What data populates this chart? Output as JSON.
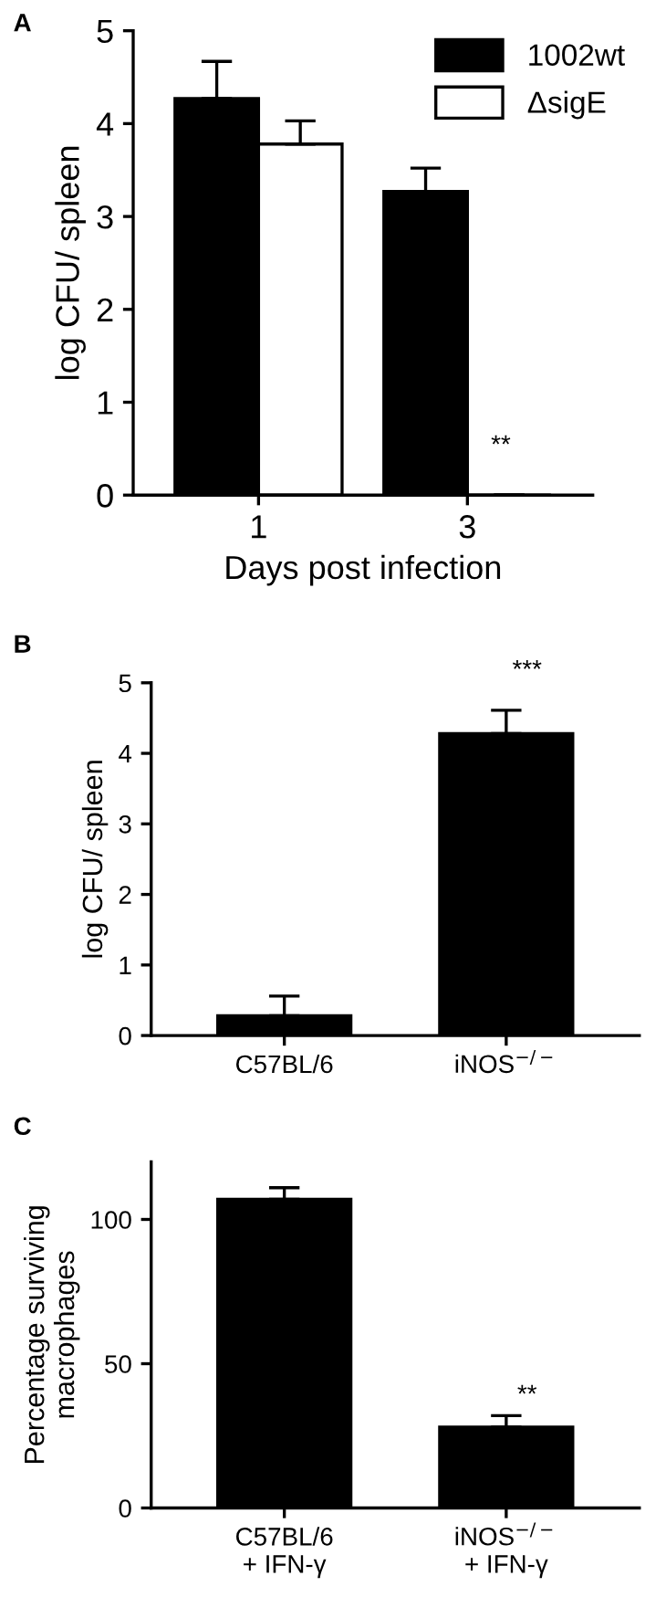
{
  "chart_data": [
    {
      "type": "bar",
      "title": "A",
      "xlabel": "Days post infection",
      "ylabel": "log CFU/ spleen",
      "categories": [
        "1",
        "3"
      ],
      "series": [
        {
          "name": "1002wt",
          "color": "#000000",
          "values": [
            4.27,
            3.27
          ],
          "errors": [
            [
              4.27,
              4.67
            ],
            [
              3.27,
              3.52
            ]
          ]
        },
        {
          "name": "ΔsigE",
          "color": "#ffffff",
          "values": [
            3.78,
            0
          ],
          "errors": [
            [
              3.78,
              4.03
            ],
            null
          ]
        }
      ],
      "ylim": [
        0,
        5
      ],
      "yticks": [
        0,
        1,
        2,
        3,
        4,
        5
      ],
      "legend": "top right",
      "grid": false,
      "annotations": [
        "**"
      ]
    },
    {
      "type": "bar",
      "title": "B",
      "ylabel": "log CFU/ spleen",
      "categories": [
        "C57BL/6",
        "iNOS$^{−/−}$"
      ],
      "values": [
        0.28,
        4.28
      ],
      "errors": [
        [
          0.28,
          0.56
        ],
        [
          4.28,
          4.61
        ]
      ],
      "color": "#000000",
      "ylim": [
        0,
        5
      ],
      "yticks": [
        0,
        1,
        2,
        3,
        4,
        5
      ],
      "grid": false,
      "annotations": [
        "***"
      ]
    },
    {
      "type": "bar",
      "title": "C",
      "ylabel": "Percentage surviving\nmacrophages",
      "categories": [
        "C57BL/6\n+ IFN-γ",
        "iNOS$^{−/−}$\n+ IFN-γ"
      ],
      "values": [
        107,
        28
      ],
      "errors": [
        [
          107,
          111
        ],
        [
          28,
          32
        ]
      ],
      "color": "#000000",
      "ylim": [
        0,
        120
      ],
      "yticks": [
        0,
        50,
        100
      ],
      "grid": false,
      "annotations": [
        "**"
      ]
    }
  ]
}
